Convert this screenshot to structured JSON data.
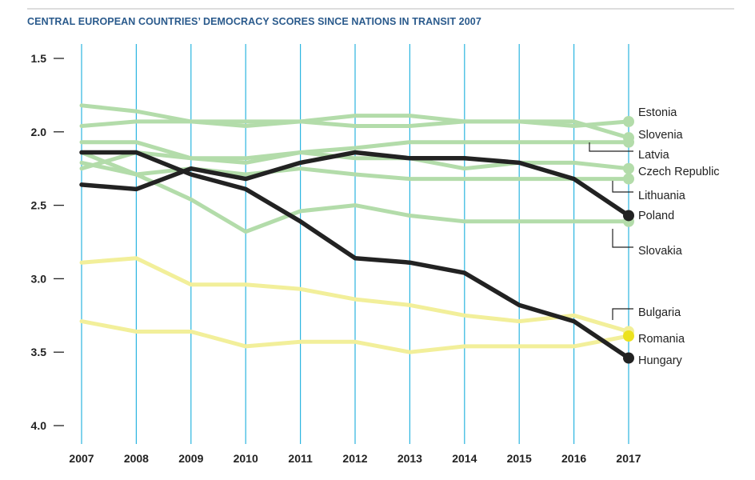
{
  "chart_data": {
    "type": "line",
    "title": "CENTRAL EUROPEAN COUNTRIES’ DEMOCRACY SCORES SINCE NATIONS IN TRANSIT 2007",
    "x": [
      2007,
      2008,
      2009,
      2010,
      2011,
      2012,
      2013,
      2014,
      2015,
      2016,
      2017
    ],
    "y_ticks": [
      "1.5",
      "2.0",
      "2.5",
      "3.0",
      "3.5",
      "4.0"
    ],
    "ylim": [
      1.5,
      4.0
    ],
    "y_inverted": true,
    "grid": "vertical lines at each year",
    "legend": "direct labels at right end of lines",
    "colors": {
      "title": "#2a5a8c",
      "vgrid": "#2bb5e0",
      "baltic_visegrad": "#b3dcaa",
      "balkan": "#f2ef9a",
      "highlight": "#222222"
    },
    "series": [
      {
        "name": "Estonia",
        "group": "green",
        "values": [
          1.82,
          1.86,
          1.93,
          1.96,
          1.93,
          1.96,
          1.96,
          1.93,
          1.93,
          1.96,
          1.93
        ]
      },
      {
        "name": "Slovenia",
        "group": "green",
        "values": [
          1.96,
          1.93,
          1.93,
          1.93,
          1.93,
          1.89,
          1.89,
          1.93,
          1.93,
          1.93,
          2.04
        ]
      },
      {
        "name": "Latvia",
        "group": "green",
        "values": [
          2.07,
          2.07,
          2.18,
          2.18,
          2.14,
          2.11,
          2.07,
          2.07,
          2.07,
          2.07,
          2.07
        ]
      },
      {
        "name": "Czech Republic",
        "group": "green",
        "values": [
          2.25,
          2.14,
          2.18,
          2.21,
          2.14,
          2.18,
          2.18,
          2.25,
          2.21,
          2.21,
          2.25
        ]
      },
      {
        "name": "Lithuania",
        "group": "green",
        "values": [
          2.21,
          2.29,
          2.25,
          2.29,
          2.25,
          2.29,
          2.32,
          2.32,
          2.32,
          2.32,
          2.32
        ]
      },
      {
        "name": "Slovakia",
        "group": "green",
        "values": [
          2.14,
          2.29,
          2.46,
          2.68,
          2.54,
          2.5,
          2.57,
          2.61,
          2.61,
          2.61,
          2.61
        ]
      },
      {
        "name": "Bulgaria",
        "group": "yellow",
        "values": [
          2.89,
          2.86,
          3.04,
          3.04,
          3.07,
          3.14,
          3.18,
          3.25,
          3.29,
          3.25,
          3.36
        ]
      },
      {
        "name": "Romania",
        "group": "yellow",
        "values": [
          3.29,
          3.36,
          3.36,
          3.46,
          3.43,
          3.43,
          3.5,
          3.46,
          3.46,
          3.46,
          3.39
        ]
      },
      {
        "name": "Poland",
        "group": "black",
        "values": [
          2.36,
          2.39,
          2.25,
          2.32,
          2.21,
          2.14,
          2.18,
          2.18,
          2.21,
          2.32,
          2.57
        ]
      },
      {
        "name": "Hungary",
        "group": "black",
        "values": [
          2.14,
          2.14,
          2.29,
          2.39,
          2.61,
          2.86,
          2.89,
          2.96,
          3.18,
          3.29,
          3.54
        ]
      }
    ],
    "labels": [
      {
        "name": "Estonia",
        "text": "Estonia"
      },
      {
        "name": "Slovenia",
        "text": "Slovenia"
      },
      {
        "name": "Latvia",
        "text": "Latvia"
      },
      {
        "name": "Czech Republic",
        "text": "Czech Republic"
      },
      {
        "name": "Lithuania",
        "text": "Lithuania"
      },
      {
        "name": "Poland",
        "text": "Poland"
      },
      {
        "name": "Slovakia",
        "text": "Slovakia"
      },
      {
        "name": "Bulgaria",
        "text": "Bulgaria"
      },
      {
        "name": "Romania",
        "text": "Romania"
      },
      {
        "name": "Hungary",
        "text": "Hungary"
      }
    ]
  }
}
